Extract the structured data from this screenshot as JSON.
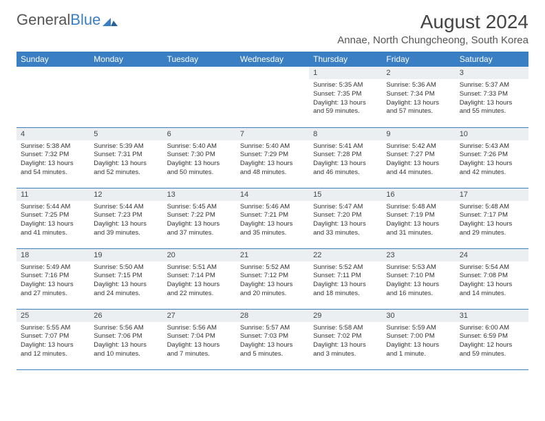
{
  "logo": {
    "part1": "General",
    "part2": "Blue"
  },
  "title": "August 2024",
  "subtitle": "Annae, North Chungcheong, South Korea",
  "colors": {
    "header_bg": "#3a7fc4",
    "header_text": "#ffffff",
    "daynum_bg": "#eceff1",
    "row_border": "#3a7fc4",
    "page_bg": "#ffffff"
  },
  "weekdays": [
    "Sunday",
    "Monday",
    "Tuesday",
    "Wednesday",
    "Thursday",
    "Friday",
    "Saturday"
  ],
  "weeks": [
    [
      null,
      null,
      null,
      null,
      {
        "n": "1",
        "sr": "5:35 AM",
        "ss": "7:35 PM",
        "dl": "13 hours and 59 minutes."
      },
      {
        "n": "2",
        "sr": "5:36 AM",
        "ss": "7:34 PM",
        "dl": "13 hours and 57 minutes."
      },
      {
        "n": "3",
        "sr": "5:37 AM",
        "ss": "7:33 PM",
        "dl": "13 hours and 55 minutes."
      }
    ],
    [
      {
        "n": "4",
        "sr": "5:38 AM",
        "ss": "7:32 PM",
        "dl": "13 hours and 54 minutes."
      },
      {
        "n": "5",
        "sr": "5:39 AM",
        "ss": "7:31 PM",
        "dl": "13 hours and 52 minutes."
      },
      {
        "n": "6",
        "sr": "5:40 AM",
        "ss": "7:30 PM",
        "dl": "13 hours and 50 minutes."
      },
      {
        "n": "7",
        "sr": "5:40 AM",
        "ss": "7:29 PM",
        "dl": "13 hours and 48 minutes."
      },
      {
        "n": "8",
        "sr": "5:41 AM",
        "ss": "7:28 PM",
        "dl": "13 hours and 46 minutes."
      },
      {
        "n": "9",
        "sr": "5:42 AM",
        "ss": "7:27 PM",
        "dl": "13 hours and 44 minutes."
      },
      {
        "n": "10",
        "sr": "5:43 AM",
        "ss": "7:26 PM",
        "dl": "13 hours and 42 minutes."
      }
    ],
    [
      {
        "n": "11",
        "sr": "5:44 AM",
        "ss": "7:25 PM",
        "dl": "13 hours and 41 minutes."
      },
      {
        "n": "12",
        "sr": "5:44 AM",
        "ss": "7:23 PM",
        "dl": "13 hours and 39 minutes."
      },
      {
        "n": "13",
        "sr": "5:45 AM",
        "ss": "7:22 PM",
        "dl": "13 hours and 37 minutes."
      },
      {
        "n": "14",
        "sr": "5:46 AM",
        "ss": "7:21 PM",
        "dl": "13 hours and 35 minutes."
      },
      {
        "n": "15",
        "sr": "5:47 AM",
        "ss": "7:20 PM",
        "dl": "13 hours and 33 minutes."
      },
      {
        "n": "16",
        "sr": "5:48 AM",
        "ss": "7:19 PM",
        "dl": "13 hours and 31 minutes."
      },
      {
        "n": "17",
        "sr": "5:48 AM",
        "ss": "7:17 PM",
        "dl": "13 hours and 29 minutes."
      }
    ],
    [
      {
        "n": "18",
        "sr": "5:49 AM",
        "ss": "7:16 PM",
        "dl": "13 hours and 27 minutes."
      },
      {
        "n": "19",
        "sr": "5:50 AM",
        "ss": "7:15 PM",
        "dl": "13 hours and 24 minutes."
      },
      {
        "n": "20",
        "sr": "5:51 AM",
        "ss": "7:14 PM",
        "dl": "13 hours and 22 minutes."
      },
      {
        "n": "21",
        "sr": "5:52 AM",
        "ss": "7:12 PM",
        "dl": "13 hours and 20 minutes."
      },
      {
        "n": "22",
        "sr": "5:52 AM",
        "ss": "7:11 PM",
        "dl": "13 hours and 18 minutes."
      },
      {
        "n": "23",
        "sr": "5:53 AM",
        "ss": "7:10 PM",
        "dl": "13 hours and 16 minutes."
      },
      {
        "n": "24",
        "sr": "5:54 AM",
        "ss": "7:08 PM",
        "dl": "13 hours and 14 minutes."
      }
    ],
    [
      {
        "n": "25",
        "sr": "5:55 AM",
        "ss": "7:07 PM",
        "dl": "13 hours and 12 minutes."
      },
      {
        "n": "26",
        "sr": "5:56 AM",
        "ss": "7:06 PM",
        "dl": "13 hours and 10 minutes."
      },
      {
        "n": "27",
        "sr": "5:56 AM",
        "ss": "7:04 PM",
        "dl": "13 hours and 7 minutes."
      },
      {
        "n": "28",
        "sr": "5:57 AM",
        "ss": "7:03 PM",
        "dl": "13 hours and 5 minutes."
      },
      {
        "n": "29",
        "sr": "5:58 AM",
        "ss": "7:02 PM",
        "dl": "13 hours and 3 minutes."
      },
      {
        "n": "30",
        "sr": "5:59 AM",
        "ss": "7:00 PM",
        "dl": "13 hours and 1 minute."
      },
      {
        "n": "31",
        "sr": "6:00 AM",
        "ss": "6:59 PM",
        "dl": "12 hours and 59 minutes."
      }
    ]
  ],
  "labels": {
    "sunrise": "Sunrise: ",
    "sunset": "Sunset: ",
    "daylight": "Daylight: "
  }
}
